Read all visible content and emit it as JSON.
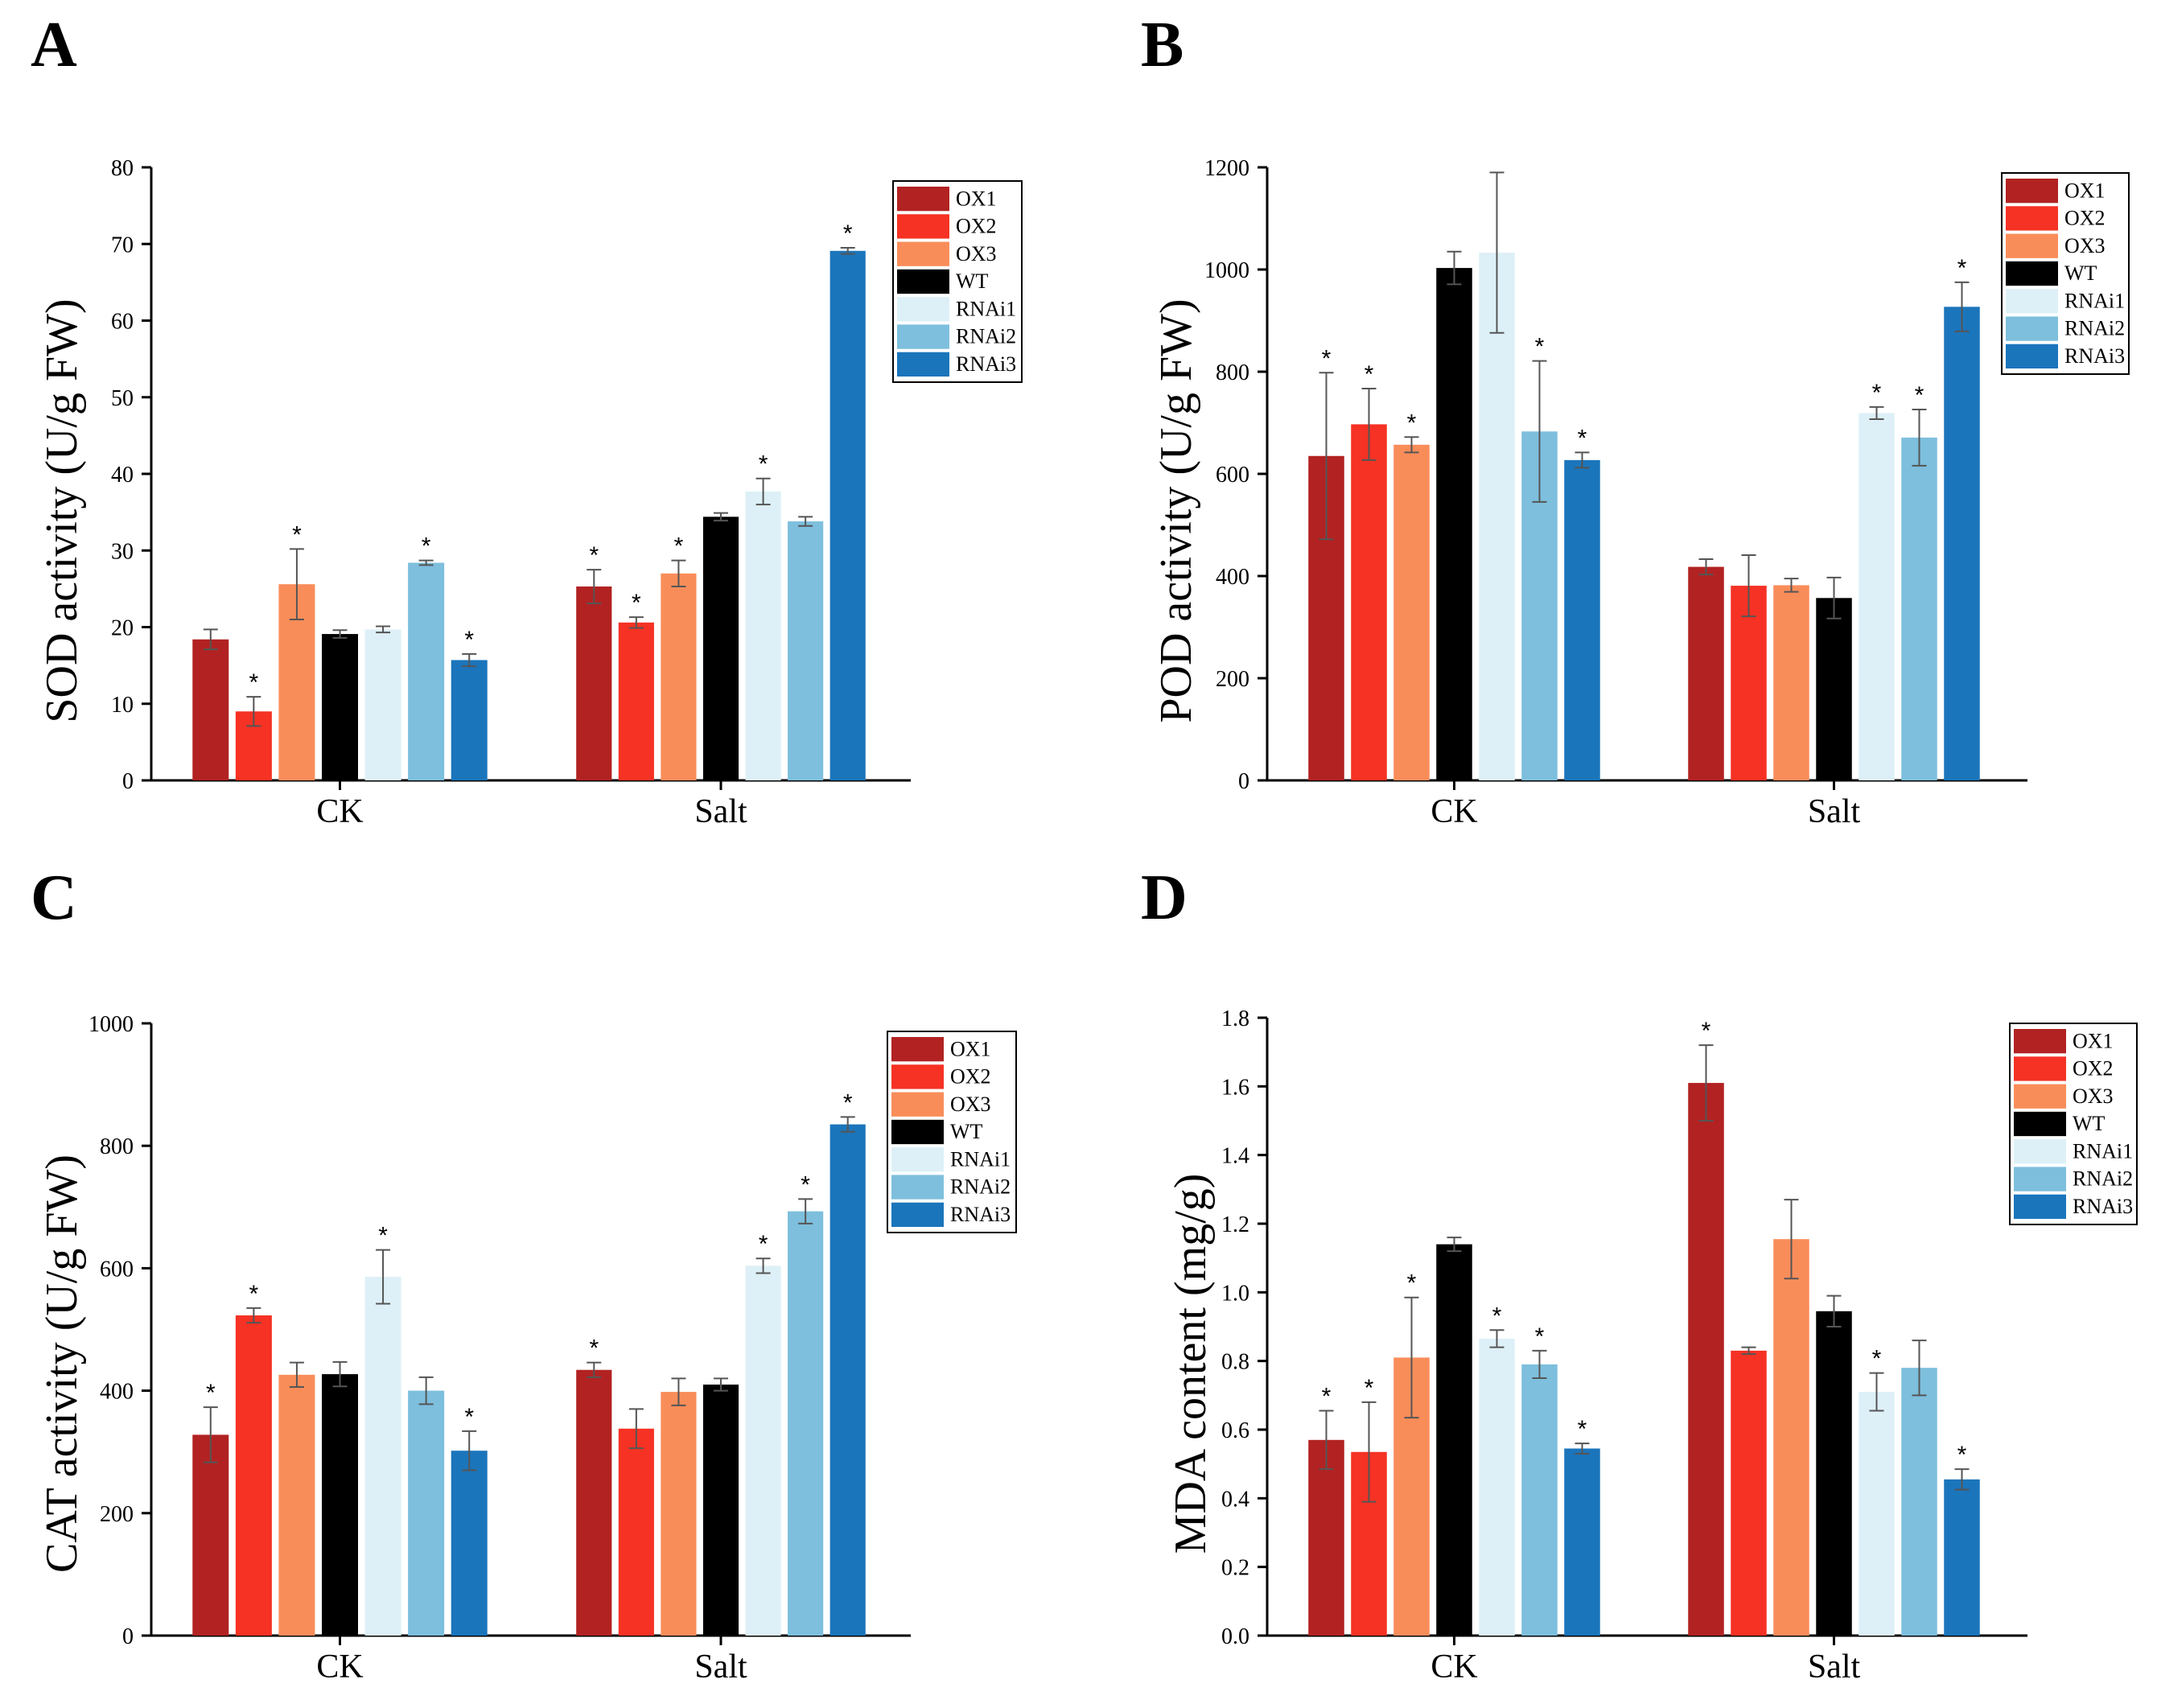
{
  "figure": {
    "colors": {
      "OX1": "#B22222",
      "OX2": "#F53224",
      "OX3": "#F98D5A",
      "WT": "#000000",
      "RNAi1": "#DDF0F7",
      "RNAi2": "#7DBFDD",
      "RNAi3": "#1B75BB"
    }
  },
  "chart_data": [
    {
      "panel": "A",
      "type": "bar",
      "ylabel": "SOD activity (U/g FW)",
      "ylim": [
        0,
        80
      ],
      "yticks": [
        "0",
        "10",
        "20",
        "30",
        "40",
        "50",
        "60",
        "70",
        "80"
      ],
      "categories": [
        "CK",
        "Salt"
      ],
      "legend": [
        "OX1",
        "OX2",
        "OX3",
        "WT",
        "RNAi1",
        "RNAi2",
        "RNAi3"
      ],
      "legend_position": "top-right",
      "series": [
        {
          "name": "OX1",
          "values": [
            18.4,
            25.3
          ],
          "errors": [
            1.3,
            2.2
          ],
          "sig": [
            false,
            true
          ]
        },
        {
          "name": "OX2",
          "values": [
            9.0,
            20.6
          ],
          "errors": [
            1.9,
            0.7
          ],
          "sig": [
            true,
            true
          ]
        },
        {
          "name": "OX3",
          "values": [
            25.6,
            27.0
          ],
          "errors": [
            4.6,
            1.7
          ],
          "sig": [
            true,
            true
          ]
        },
        {
          "name": "WT",
          "values": [
            19.1,
            34.4
          ],
          "errors": [
            0.5,
            0.5
          ],
          "sig": [
            false,
            false
          ]
        },
        {
          "name": "RNAi1",
          "values": [
            19.7,
            37.7
          ],
          "errors": [
            0.4,
            1.7
          ],
          "sig": [
            false,
            true
          ]
        },
        {
          "name": "RNAi2",
          "values": [
            28.4,
            33.8
          ],
          "errors": [
            0.3,
            0.6
          ],
          "sig": [
            true,
            false
          ]
        },
        {
          "name": "RNAi3",
          "values": [
            15.7,
            69.1
          ],
          "errors": [
            0.8,
            0.4
          ],
          "sig": [
            true,
            true
          ]
        }
      ]
    },
    {
      "panel": "B",
      "type": "bar",
      "ylabel": "POD activity (U/g FW)",
      "ylim": [
        0,
        1200
      ],
      "yticks": [
        "0",
        "200",
        "400",
        "600",
        "800",
        "1000",
        "1200"
      ],
      "categories": [
        "CK",
        "Salt"
      ],
      "legend": [
        "OX1",
        "OX2",
        "OX3",
        "WT",
        "RNAi1",
        "RNAi2",
        "RNAi3"
      ],
      "legend_position": "top-right",
      "series": [
        {
          "name": "OX1",
          "values": [
            635,
            418
          ],
          "errors": [
            163,
            15
          ],
          "sig": [
            true,
            false
          ]
        },
        {
          "name": "OX2",
          "values": [
            697,
            381
          ],
          "errors": [
            70,
            60
          ],
          "sig": [
            true,
            false
          ]
        },
        {
          "name": "OX3",
          "values": [
            657,
            382
          ],
          "errors": [
            15,
            13
          ],
          "sig": [
            true,
            false
          ]
        },
        {
          "name": "WT",
          "values": [
            1003,
            357
          ],
          "errors": [
            32,
            40
          ],
          "sig": [
            false,
            false
          ]
        },
        {
          "name": "RNAi1",
          "values": [
            1033,
            719
          ],
          "errors": [
            157,
            12
          ],
          "sig": [
            false,
            true
          ]
        },
        {
          "name": "RNAi2",
          "values": [
            683,
            671
          ],
          "errors": [
            138,
            55
          ],
          "sig": [
            true,
            true
          ]
        },
        {
          "name": "RNAi3",
          "values": [
            627,
            927
          ],
          "errors": [
            15,
            48
          ],
          "sig": [
            true,
            true
          ]
        }
      ]
    },
    {
      "panel": "C",
      "type": "bar",
      "ylabel": "CAT activity (U/g FW)",
      "ylim": [
        0,
        1000
      ],
      "yticks": [
        "0",
        "200",
        "400",
        "600",
        "800",
        "1000"
      ],
      "categories": [
        "CK",
        "Salt"
      ],
      "legend": [
        "OX1",
        "OX2",
        "OX3",
        "WT",
        "RNAi1",
        "RNAi2",
        "RNAi3"
      ],
      "legend_position": "top-right",
      "series": [
        {
          "name": "OX1",
          "values": [
            328,
            434
          ],
          "errors": [
            45,
            12
          ],
          "sig": [
            true,
            true
          ]
        },
        {
          "name": "OX2",
          "values": [
            523,
            338
          ],
          "errors": [
            12,
            32
          ],
          "sig": [
            true,
            false
          ]
        },
        {
          "name": "OX3",
          "values": [
            426,
            398
          ],
          "errors": [
            20,
            22
          ],
          "sig": [
            false,
            false
          ]
        },
        {
          "name": "WT",
          "values": [
            427,
            410
          ],
          "errors": [
            20,
            10
          ],
          "sig": [
            false,
            false
          ]
        },
        {
          "name": "RNAi1",
          "values": [
            586,
            604
          ],
          "errors": [
            44,
            12
          ],
          "sig": [
            true,
            true
          ]
        },
        {
          "name": "RNAi2",
          "values": [
            400,
            693
          ],
          "errors": [
            22,
            20
          ],
          "sig": [
            false,
            true
          ]
        },
        {
          "name": "RNAi3",
          "values": [
            302,
            835
          ],
          "errors": [
            32,
            12
          ],
          "sig": [
            true,
            true
          ]
        }
      ]
    },
    {
      "panel": "D",
      "type": "bar",
      "ylabel": "MDA content (mg/g)",
      "ylim": [
        0,
        1.8
      ],
      "yticks": [
        "0.0",
        "0.2",
        "0.4",
        "0.6",
        "0.8",
        "1.0",
        "1.2",
        "1.4",
        "1.6",
        "1.8"
      ],
      "categories": [
        "CK",
        "Salt"
      ],
      "legend": [
        "OX1",
        "OX2",
        "OX3",
        "WT",
        "RNAi1",
        "RNAi2",
        "RNAi3"
      ],
      "legend_position": "top-right",
      "series": [
        {
          "name": "OX1",
          "values": [
            0.57,
            1.61
          ],
          "errors": [
            0.085,
            0.11
          ],
          "sig": [
            true,
            true
          ]
        },
        {
          "name": "OX2",
          "values": [
            0.535,
            0.83
          ],
          "errors": [
            0.145,
            0.01
          ],
          "sig": [
            true,
            false
          ]
        },
        {
          "name": "OX3",
          "values": [
            0.81,
            1.155
          ],
          "errors": [
            0.175,
            0.115
          ],
          "sig": [
            true,
            false
          ]
        },
        {
          "name": "WT",
          "values": [
            1.14,
            0.945
          ],
          "errors": [
            0.02,
            0.045
          ],
          "sig": [
            false,
            false
          ]
        },
        {
          "name": "RNAi1",
          "values": [
            0.865,
            0.71
          ],
          "errors": [
            0.025,
            0.055
          ],
          "sig": [
            true,
            true
          ]
        },
        {
          "name": "RNAi2",
          "values": [
            0.79,
            0.78
          ],
          "errors": [
            0.04,
            0.08
          ],
          "sig": [
            true,
            false
          ]
        },
        {
          "name": "RNAi3",
          "values": [
            0.545,
            0.455
          ],
          "errors": [
            0.015,
            0.03
          ],
          "sig": [
            true,
            true
          ]
        }
      ]
    }
  ]
}
